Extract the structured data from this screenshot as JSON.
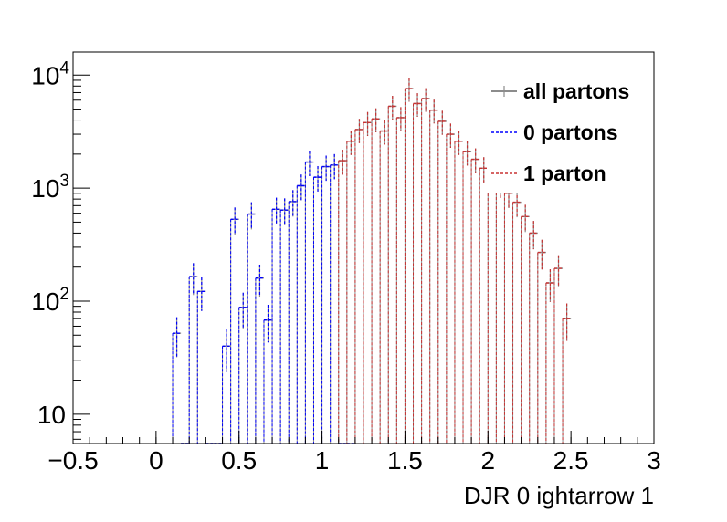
{
  "chart_data": {
    "type": "histogram",
    "xlabel": "DJR 0 ightarrow 1",
    "ylabel": "",
    "xlim": [
      -0.5,
      3.0
    ],
    "ylim": [
      5.5,
      16000
    ],
    "y_scale": "log",
    "bin_width": 0.05,
    "x_ticks": [
      {
        "value": -0.5,
        "label": "−0.5"
      },
      {
        "value": 0,
        "label": "0"
      },
      {
        "value": 0.5,
        "label": "0.5"
      },
      {
        "value": 1,
        "label": "1"
      },
      {
        "value": 1.5,
        "label": "1.5"
      },
      {
        "value": 2,
        "label": "2"
      },
      {
        "value": 2.5,
        "label": "2.5"
      },
      {
        "value": 3,
        "label": "3"
      }
    ],
    "y_ticks": [
      {
        "value": 10,
        "base": "10",
        "exp": ""
      },
      {
        "value": 100,
        "base": "10",
        "exp": "2"
      },
      {
        "value": 1000,
        "base": "10",
        "exp": "3"
      },
      {
        "value": 10000,
        "base": "10",
        "exp": "4"
      }
    ],
    "legend_position": "top-right",
    "series": [
      {
        "name": "all partons",
        "color": "#8c8c8c",
        "style": "solid",
        "bins": [
          [
            0.1,
            0.15,
            52
          ],
          [
            0.15,
            0.2,
            0
          ],
          [
            0.2,
            0.25,
            165
          ],
          [
            0.25,
            0.3,
            122
          ],
          [
            0.3,
            0.35,
            0
          ],
          [
            0.35,
            0.4,
            0
          ],
          [
            0.4,
            0.45,
            40
          ],
          [
            0.45,
            0.5,
            530
          ],
          [
            0.5,
            0.55,
            88
          ],
          [
            0.55,
            0.6,
            590
          ],
          [
            0.6,
            0.65,
            160
          ],
          [
            0.65,
            0.7,
            68
          ],
          [
            0.7,
            0.75,
            650
          ],
          [
            0.75,
            0.8,
            640
          ],
          [
            0.8,
            0.85,
            760
          ],
          [
            0.85,
            0.9,
            1050
          ],
          [
            0.9,
            0.95,
            1700
          ],
          [
            0.95,
            1.0,
            1250
          ],
          [
            1.0,
            1.05,
            1550
          ],
          [
            1.05,
            1.1,
            1600
          ],
          [
            1.1,
            1.15,
            1750
          ],
          [
            1.15,
            1.2,
            2600
          ],
          [
            1.2,
            1.25,
            3300
          ],
          [
            1.25,
            1.3,
            3800
          ],
          [
            1.3,
            1.35,
            4100
          ],
          [
            1.35,
            1.4,
            3200
          ],
          [
            1.4,
            1.45,
            5300
          ],
          [
            1.45,
            1.5,
            4200
          ],
          [
            1.5,
            1.55,
            7600
          ],
          [
            1.55,
            1.6,
            5600
          ],
          [
            1.6,
            1.65,
            6200
          ],
          [
            1.65,
            1.7,
            4900
          ],
          [
            1.7,
            1.75,
            3900
          ],
          [
            1.75,
            1.8,
            3000
          ],
          [
            1.8,
            1.85,
            2600
          ],
          [
            1.85,
            1.9,
            2100
          ],
          [
            1.9,
            1.95,
            1800
          ],
          [
            1.95,
            2.0,
            1500
          ],
          [
            2.0,
            2.05,
            1300
          ],
          [
            2.05,
            2.1,
            1100
          ],
          [
            2.1,
            2.15,
            900
          ],
          [
            2.15,
            2.2,
            750
          ],
          [
            2.2,
            2.25,
            560
          ],
          [
            2.25,
            2.3,
            400
          ],
          [
            2.3,
            2.35,
            270
          ],
          [
            2.35,
            2.4,
            145
          ],
          [
            2.4,
            2.45,
            195
          ],
          [
            2.45,
            2.5,
            70
          ]
        ]
      },
      {
        "name": "0 partons",
        "color": "#0000ff",
        "style": "dotted",
        "bins": [
          [
            0.1,
            0.15,
            52
          ],
          [
            0.15,
            0.2,
            0
          ],
          [
            0.2,
            0.25,
            165
          ],
          [
            0.25,
            0.3,
            122
          ],
          [
            0.3,
            0.35,
            0
          ],
          [
            0.35,
            0.4,
            0
          ],
          [
            0.4,
            0.45,
            40
          ],
          [
            0.45,
            0.5,
            530
          ],
          [
            0.5,
            0.55,
            88
          ],
          [
            0.55,
            0.6,
            590
          ],
          [
            0.6,
            0.65,
            160
          ],
          [
            0.65,
            0.7,
            68
          ],
          [
            0.7,
            0.75,
            650
          ],
          [
            0.75,
            0.8,
            640
          ],
          [
            0.8,
            0.85,
            760
          ],
          [
            0.85,
            0.9,
            1050
          ],
          [
            0.9,
            0.95,
            1700
          ],
          [
            0.95,
            1.0,
            1250
          ],
          [
            1.0,
            1.05,
            1550
          ],
          [
            1.05,
            1.1,
            1600
          ],
          [
            1.1,
            1.15,
            0
          ],
          [
            1.15,
            1.2,
            0
          ]
        ]
      },
      {
        "name": "1 parton",
        "color": "#c83232",
        "style": "dotted",
        "bins": [
          [
            1.1,
            1.15,
            1750
          ],
          [
            1.15,
            1.2,
            2600
          ],
          [
            1.2,
            1.25,
            3300
          ],
          [
            1.25,
            1.3,
            3800
          ],
          [
            1.3,
            1.35,
            4100
          ],
          [
            1.35,
            1.4,
            3200
          ],
          [
            1.4,
            1.45,
            5300
          ],
          [
            1.45,
            1.5,
            4200
          ],
          [
            1.5,
            1.55,
            7600
          ],
          [
            1.55,
            1.6,
            5600
          ],
          [
            1.6,
            1.65,
            6200
          ],
          [
            1.65,
            1.7,
            4900
          ],
          [
            1.7,
            1.75,
            3900
          ],
          [
            1.75,
            1.8,
            3000
          ],
          [
            1.8,
            1.85,
            2600
          ],
          [
            1.85,
            1.9,
            2100
          ],
          [
            1.9,
            1.95,
            1800
          ],
          [
            1.95,
            2.0,
            1500
          ],
          [
            2.0,
            2.05,
            1300
          ],
          [
            2.05,
            2.1,
            1100
          ],
          [
            2.1,
            2.15,
            900
          ],
          [
            2.15,
            2.2,
            750
          ],
          [
            2.2,
            2.25,
            560
          ],
          [
            2.25,
            2.3,
            400
          ],
          [
            2.3,
            2.35,
            270
          ],
          [
            2.35,
            2.4,
            145
          ],
          [
            2.4,
            2.45,
            195
          ],
          [
            2.45,
            2.5,
            70
          ]
        ]
      }
    ]
  },
  "legend": {
    "items": [
      {
        "label": "all partons",
        "color": "#8c8c8c"
      },
      {
        "label": "0 partons",
        "color": "#0000ff"
      },
      {
        "label": "1 parton",
        "color": "#c83232"
      }
    ]
  }
}
